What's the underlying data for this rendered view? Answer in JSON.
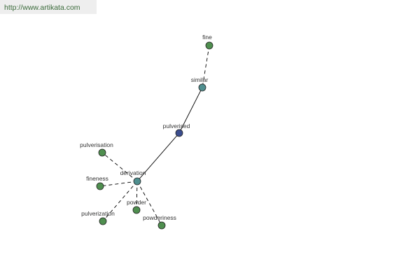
{
  "header": {
    "url": "http://www.artikata.com"
  },
  "nodes": [
    {
      "label": "fine"
    },
    {
      "label": "similar"
    },
    {
      "label": "pulverised"
    },
    {
      "label": "derivation"
    },
    {
      "label": "pulverisation"
    },
    {
      "label": "fineness"
    },
    {
      "label": "pulverization"
    },
    {
      "label": "powder"
    },
    {
      "label": "powderiness"
    }
  ]
}
